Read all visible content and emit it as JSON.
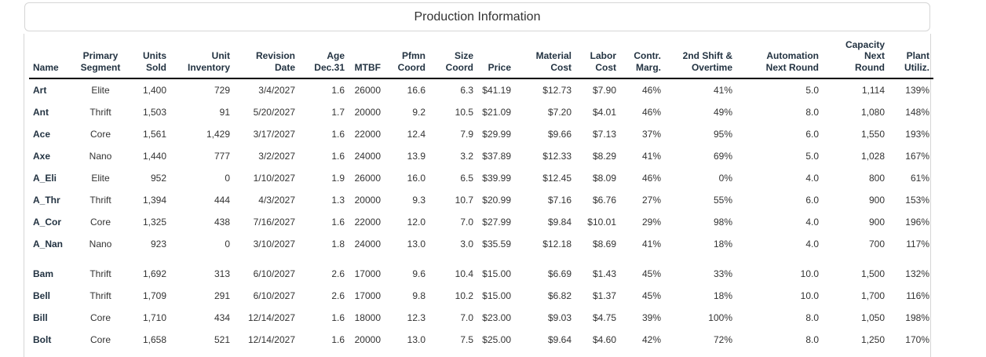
{
  "title": "Production Information",
  "table": {
    "columns": [
      {
        "id": "name",
        "label": "Name",
        "align": "left"
      },
      {
        "id": "primary-segment",
        "label": "Primary\nSegment",
        "align": "center"
      },
      {
        "id": "units-sold",
        "label": "Units\nSold",
        "align": "right"
      },
      {
        "id": "unit-inventory",
        "label": "Unit\nInventory",
        "align": "right"
      },
      {
        "id": "revision-date",
        "label": "Revision\nDate",
        "align": "right"
      },
      {
        "id": "age-dec31",
        "label": "Age\nDec.31",
        "align": "right"
      },
      {
        "id": "mtbf",
        "label": "MTBF",
        "align": "right"
      },
      {
        "id": "pfmn-coord",
        "label": "Pfmn\nCoord",
        "align": "right"
      },
      {
        "id": "size-coord",
        "label": "Size\nCoord",
        "align": "right"
      },
      {
        "id": "price",
        "label": "Price",
        "align": "right"
      },
      {
        "id": "material-cost",
        "label": "Material\nCost",
        "align": "right"
      },
      {
        "id": "labor-cost",
        "label": "Labor\nCost",
        "align": "right"
      },
      {
        "id": "contr-marg",
        "label": "Contr.\nMarg.",
        "align": "right"
      },
      {
        "id": "second-shift-overtime",
        "label": "2nd Shift &\nOvertime",
        "align": "right"
      },
      {
        "id": "automation-next-round",
        "label": "Automation\nNext Round",
        "align": "right"
      },
      {
        "id": "capacity-next-round",
        "label": "Capacity\nNext\nRound",
        "align": "right"
      },
      {
        "id": "plant-utiliz",
        "label": "Plant\nUtiliz.",
        "align": "right"
      }
    ],
    "groups": [
      {
        "rows": [
          [
            "Art",
            "Elite",
            "1,400",
            "729",
            "3/4/2027",
            "1.6",
            "26000",
            "16.6",
            "6.3",
            "$41.19",
            "$12.73",
            "$7.90",
            "46%",
            "41%",
            "5.0",
            "1,114",
            "139%"
          ],
          [
            "Ant",
            "Thrift",
            "1,503",
            "91",
            "5/20/2027",
            "1.7",
            "20000",
            "9.2",
            "10.5",
            "$21.09",
            "$7.20",
            "$4.01",
            "46%",
            "49%",
            "8.0",
            "1,080",
            "148%"
          ],
          [
            "Ace",
            "Core",
            "1,561",
            "1,429",
            "3/17/2027",
            "1.6",
            "22000",
            "12.4",
            "7.9",
            "$29.99",
            "$9.66",
            "$7.13",
            "37%",
            "95%",
            "6.0",
            "1,550",
            "193%"
          ],
          [
            "Axe",
            "Nano",
            "1,440",
            "777",
            "3/2/2027",
            "1.6",
            "24000",
            "13.9",
            "3.2",
            "$37.89",
            "$12.33",
            "$8.29",
            "41%",
            "69%",
            "5.0",
            "1,028",
            "167%"
          ],
          [
            "A_Eli",
            "Elite",
            "952",
            "0",
            "1/10/2027",
            "1.9",
            "26000",
            "16.0",
            "6.5",
            "$39.99",
            "$12.45",
            "$8.09",
            "46%",
            "0%",
            "4.0",
            "800",
            "61%"
          ],
          [
            "A_Thr",
            "Thrift",
            "1,394",
            "444",
            "4/3/2027",
            "1.3",
            "20000",
            "9.3",
            "10.7",
            "$20.99",
            "$7.16",
            "$6.76",
            "27%",
            "55%",
            "6.0",
            "900",
            "153%"
          ],
          [
            "A_Cor",
            "Core",
            "1,325",
            "438",
            "7/16/2027",
            "1.6",
            "22000",
            "12.0",
            "7.0",
            "$27.99",
            "$9.84",
            "$10.01",
            "29%",
            "98%",
            "4.0",
            "900",
            "196%"
          ],
          [
            "A_Nan",
            "Nano",
            "923",
            "0",
            "3/10/2027",
            "1.8",
            "24000",
            "13.0",
            "3.0",
            "$35.59",
            "$12.18",
            "$8.69",
            "41%",
            "18%",
            "4.0",
            "700",
            "117%"
          ]
        ]
      },
      {
        "rows": [
          [
            "Bam",
            "Thrift",
            "1,692",
            "313",
            "6/10/2027",
            "2.6",
            "17000",
            "9.6",
            "10.4",
            "$15.00",
            "$6.69",
            "$1.43",
            "45%",
            "33%",
            "10.0",
            "1,500",
            "132%"
          ],
          [
            "Bell",
            "Thrift",
            "1,709",
            "291",
            "6/10/2027",
            "2.6",
            "17000",
            "9.8",
            "10.2",
            "$15.00",
            "$6.82",
            "$1.37",
            "45%",
            "18%",
            "10.0",
            "1,700",
            "116%"
          ],
          [
            "Bill",
            "Core",
            "1,710",
            "434",
            "12/14/2027",
            "1.6",
            "18000",
            "12.3",
            "7.0",
            "$23.00",
            "$9.03",
            "$4.75",
            "39%",
            "100%",
            "8.0",
            "1,050",
            "198%"
          ],
          [
            "Bolt",
            "Core",
            "1,658",
            "521",
            "12/14/2027",
            "1.6",
            "20000",
            "13.0",
            "7.5",
            "$25.00",
            "$9.64",
            "$4.60",
            "42%",
            "72%",
            "8.0",
            "1,250",
            "170%"
          ]
        ]
      }
    ]
  }
}
